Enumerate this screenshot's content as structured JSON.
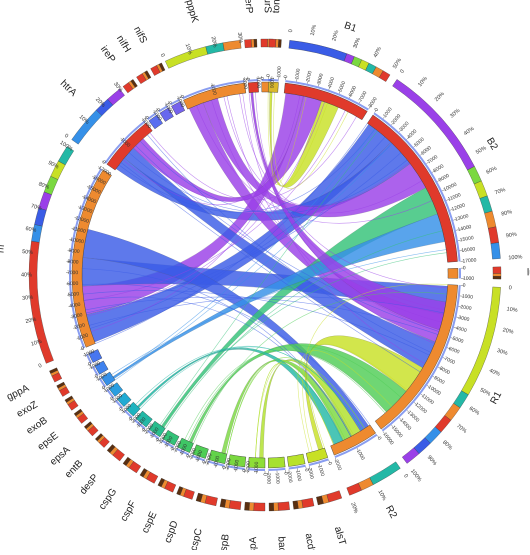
{
  "diagram": {
    "type": "circos-chord",
    "segments": [
      {
        "id": "B1",
        "label": "B1",
        "color": "#e03a2b",
        "group": "sample",
        "start": 6,
        "span": 26
      },
      {
        "id": "B2",
        "label": "B2",
        "color": "#e03a2b",
        "group": "sample",
        "start": 34,
        "span": 52
      },
      {
        "id": "lutA",
        "label": "lutA",
        "color": "#ee8a2f",
        "group": "gene",
        "start": 88,
        "span": 3
      },
      {
        "id": "R1",
        "label": "R1",
        "color": "#ee8a2f",
        "group": "sample",
        "start": 93,
        "span": 50
      },
      {
        "id": "R2",
        "label": "R2",
        "color": "#ee8a2f",
        "group": "sample",
        "start": 145,
        "span": 14
      },
      {
        "id": "alsT",
        "label": "alsT",
        "color": "#c8e025",
        "group": "gene",
        "start": 161,
        "span": 6
      },
      {
        "id": "acdS",
        "label": "acdS",
        "color": "#b9e22a",
        "group": "gene",
        "start": 168,
        "span": 5
      },
      {
        "id": "bacB",
        "label": "bacB",
        "color": "#a6e030",
        "group": "gene",
        "start": 174,
        "span": 5
      },
      {
        "id": "cspA",
        "label": "cspA",
        "color": "#8ede38",
        "group": "gene",
        "start": 180,
        "span": 5
      },
      {
        "id": "cspB",
        "label": "cspB",
        "color": "#7ad840",
        "group": "gene",
        "start": 186,
        "span": 5
      },
      {
        "id": "cspC",
        "label": "cspC",
        "color": "#62d34a",
        "group": "gene",
        "start": 192,
        "span": 5
      },
      {
        "id": "cspD",
        "label": "cspD",
        "color": "#4fcd55",
        "group": "gene",
        "start": 198,
        "span": 4
      },
      {
        "id": "cspE",
        "label": "cspE",
        "color": "#3fc765",
        "group": "gene",
        "start": 203,
        "span": 4
      },
      {
        "id": "cspF",
        "label": "cspF",
        "color": "#33c278",
        "group": "gene",
        "start": 208,
        "span": 4
      },
      {
        "id": "cspG",
        "label": "cspG",
        "color": "#2abd8d",
        "group": "gene",
        "start": 213,
        "span": 4
      },
      {
        "id": "desP",
        "label": "desP",
        "color": "#23b8a6",
        "group": "gene",
        "start": 218,
        "span": 4
      },
      {
        "id": "entB",
        "label": "entB",
        "color": "#1db3bf",
        "group": "gene",
        "start": 223,
        "span": 3
      },
      {
        "id": "epsA",
        "label": "epsA",
        "color": "#20aad3",
        "group": "gene",
        "start": 227,
        "span": 3
      },
      {
        "id": "epsE",
        "label": "epsE",
        "color": "#2a9ee0",
        "group": "gene",
        "start": 231,
        "span": 3
      },
      {
        "id": "exoB",
        "label": "exoB",
        "color": "#3590e8",
        "group": "gene",
        "start": 235,
        "span": 3
      },
      {
        "id": "exoZ",
        "label": "exoZ",
        "color": "#3f82ee",
        "group": "gene",
        "start": 239,
        "span": 3
      },
      {
        "id": "gppA",
        "label": "gppA",
        "color": "#4876f0",
        "group": "gene",
        "start": 243,
        "span": 3
      },
      {
        "id": "groE",
        "label": "groE",
        "color": "#ee8a2f",
        "group": "gene",
        "start": 248,
        "span": 55
      },
      {
        "id": "htrA",
        "label": "htrA",
        "color": "#e03a2b",
        "group": "gene",
        "start": 305,
        "span": 17
      },
      {
        "id": "ireP",
        "label": "ireP",
        "color": "#5a6ff0",
        "group": "gene",
        "start": 323,
        "span": 3
      },
      {
        "id": "nifH",
        "label": "nifH",
        "color": "#6868ee",
        "group": "gene",
        "start": 327,
        "span": 3
      },
      {
        "id": "nifS",
        "label": "nifS",
        "color": "#7562ec",
        "group": "gene",
        "start": 331,
        "span": 3
      },
      {
        "id": "pppK",
        "label": "pppK",
        "color": "#ee8a2f",
        "group": "gene",
        "start": 335,
        "span": 19
      },
      {
        "id": "serP",
        "label": "serP",
        "color": "#e03a2b",
        "group": "gene",
        "start": 355,
        "span": 3
      },
      {
        "id": "surS",
        "label": "surS",
        "color": "#ee8a2f",
        "group": "gene",
        "start": 359,
        "span": 3
      },
      {
        "id": "tonB",
        "label": "tonB",
        "color": "#d9b82e",
        "group": "gene",
        "start": 1,
        "span": 3
      }
    ],
    "ribbons": [
      {
        "from": "B2",
        "to": "groE",
        "color": "#3a5ce6"
      },
      {
        "from": "B2",
        "to": "htrA",
        "color": "#3a5ce6"
      },
      {
        "from": "B1",
        "to": "groE",
        "color": "#9a40e8"
      },
      {
        "from": "R1",
        "to": "groE",
        "color": "#3a5ce6"
      },
      {
        "from": "R1",
        "to": "pppK",
        "color": "#9a40e8"
      },
      {
        "from": "R1",
        "to": "htrA",
        "color": "#3a5ce6"
      },
      {
        "from": "B2",
        "to": "pppK",
        "color": "#9a40e8"
      },
      {
        "from": "R2",
        "to": "groE",
        "color": "#3a5ce6"
      },
      {
        "from": "B1",
        "to": "htrA",
        "color": "#9a40e8"
      },
      {
        "from": "R2",
        "to": "cspA",
        "color": "#b0e02a"
      },
      {
        "from": "R2",
        "to": "cspC",
        "color": "#7ad840"
      },
      {
        "from": "B1",
        "to": "tonB",
        "color": "#c8e025"
      },
      {
        "from": "R1",
        "to": "alsT",
        "color": "#c8e025"
      },
      {
        "from": "R1",
        "to": "cspE",
        "color": "#4fcd55"
      },
      {
        "from": "B2",
        "to": "cspG",
        "color": "#33c278"
      },
      {
        "from": "R2",
        "to": "entB",
        "color": "#23b8a6"
      },
      {
        "from": "B2",
        "to": "exoB",
        "color": "#3590e8"
      },
      {
        "from": "R1",
        "to": "serP",
        "color": "#9a40e8"
      }
    ],
    "gene_ticks": [
      "0",
      "1000",
      "2000"
    ],
    "large_ticks": [
      "0",
      "1000",
      "2000",
      "3000",
      "4000",
      "5000",
      "6000",
      "7000",
      "8000",
      "9000",
      "10000",
      "11000",
      "12000",
      "13000",
      "14000",
      "15000",
      "16000",
      "17000"
    ],
    "pct_ticks": [
      "0",
      "10%",
      "20%",
      "30%",
      "40%",
      "50%",
      "60%",
      "70%",
      "80%",
      "90%",
      "100%"
    ]
  }
}
